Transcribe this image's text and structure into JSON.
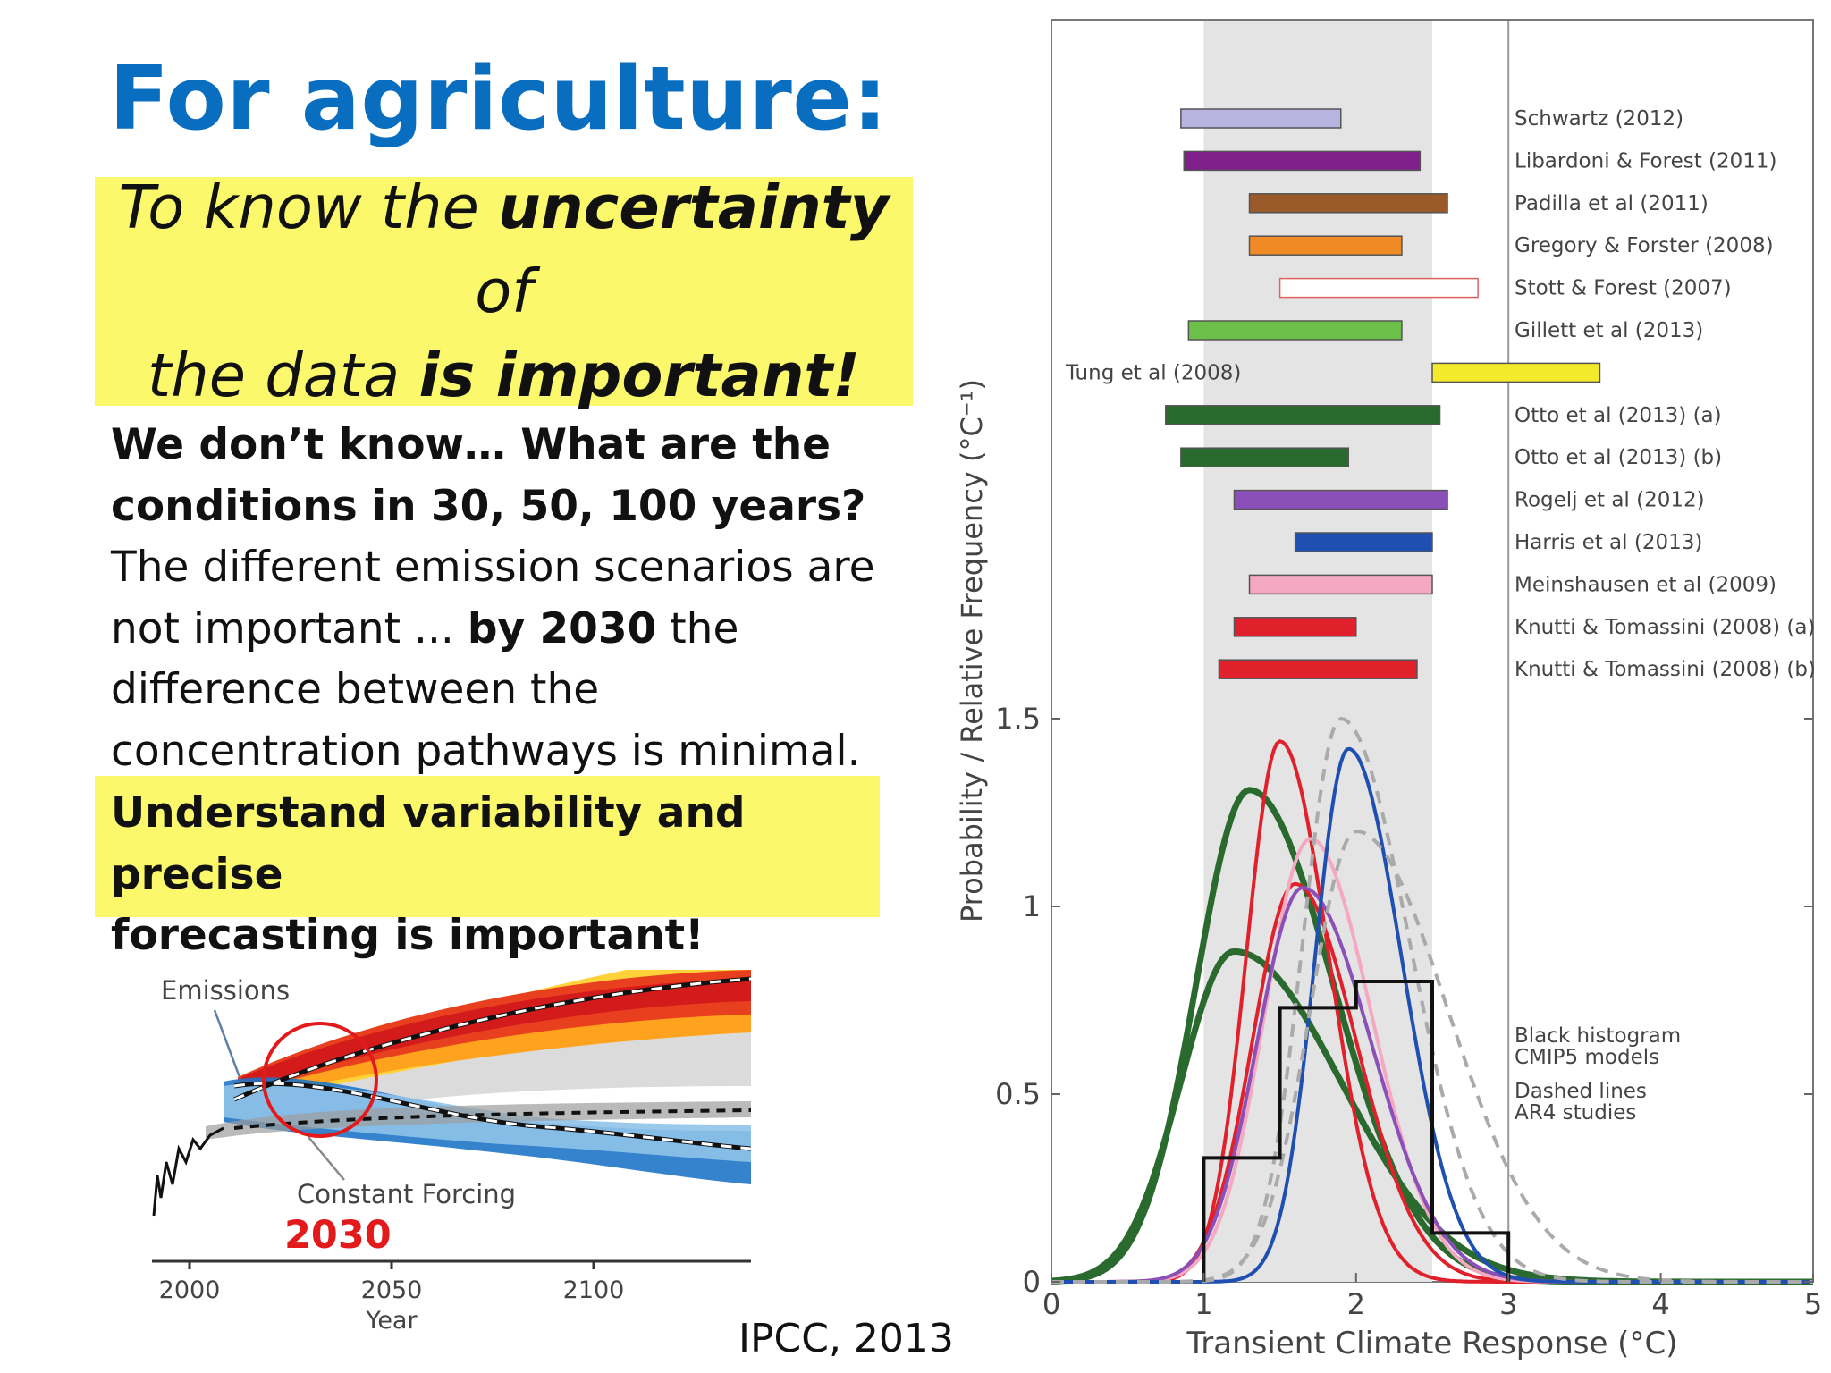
{
  "slide": {
    "title": "For agriculture:",
    "callout": {
      "line1_pre": "To know the ",
      "line1_bold": "uncertainty",
      "line1_post": " of",
      "line2_pre": "the data ",
      "line2_bold": "is important!"
    },
    "body": {
      "bold_line1": "We don’t know… What are the",
      "bold_line2": "conditions in 30, 50, 100 years?",
      "line3": "The different emission scenarios are",
      "line4_pre": "not important ... ",
      "line4_bold": "by 2030",
      "line4_post": " the",
      "line5": "difference between the",
      "line6": "concentration pathways is minimal."
    },
    "highlight": {
      "line1": "Understand variability and precise",
      "line2": "forecasting is important!"
    },
    "credit": "IPCC, 2013"
  },
  "scenario_chart": {
    "labels": {
      "emissions": "Emissions",
      "constant_forcing": "Constant Forcing",
      "year_marker": "2030",
      "xlabel": "Year"
    },
    "x_ticks": [
      "2000",
      "2050",
      "2100"
    ],
    "colors": {
      "marker_circle": "#e31a1c",
      "marker_text": "#e31a1c"
    }
  },
  "chart_data": {
    "type": "line",
    "xlabel": "Transient Climate Response (°C)",
    "ylabel": "Probability / Relative Frequency (°C⁻¹)",
    "xlim": [
      0,
      5
    ],
    "ylim": [
      0,
      1.5
    ],
    "x_ticks": [
      "0",
      "1",
      "2",
      "3",
      "4",
      "5"
    ],
    "y_ticks": [
      "0",
      "0.5",
      "1",
      "1.5"
    ],
    "likely_range": [
      1,
      2.5
    ],
    "reference_line_x": 3,
    "ranges": [
      {
        "name": "Schwartz (2012)",
        "low": 0.85,
        "high": 1.9,
        "color": "#b7b4e0"
      },
      {
        "name": "Libardoni & Forest (2011)",
        "low": 0.87,
        "high": 2.42,
        "color": "#7f1f8a"
      },
      {
        "name": "Padilla et al (2011)",
        "low": 1.3,
        "high": 2.6,
        "color": "#9a5a2a"
      },
      {
        "name": "Gregory & Forster (2008)",
        "low": 1.3,
        "high": 2.3,
        "color": "#f08a24"
      },
      {
        "name": "Stott & Forest (2007)",
        "low": 1.5,
        "high": 2.8,
        "color": "#ffffff",
        "outline": "#e06060"
      },
      {
        "name": "Gillett et al (2013)",
        "low": 0.9,
        "high": 2.3,
        "color": "#6cc04a"
      },
      {
        "name": "Tung et al (2008)",
        "low": 2.5,
        "high": 3.6,
        "color": "#f2ea2a"
      },
      {
        "name": "Otto et al (2013) (a)",
        "low": 0.75,
        "high": 2.55,
        "color": "#2a6a2e"
      },
      {
        "name": "Otto et al (2013) (b)",
        "low": 0.85,
        "high": 1.95,
        "color": "#2a6a2e"
      },
      {
        "name": "Rogelj et al (2012)",
        "low": 1.2,
        "high": 2.6,
        "color": "#8a4fb8"
      },
      {
        "name": "Harris et al (2013)",
        "low": 1.6,
        "high": 2.5,
        "color": "#1f4fb0"
      },
      {
        "name": "Meinshausen et al (2009)",
        "low": 1.3,
        "high": 2.5,
        "color": "#f4a8c2"
      },
      {
        "name": "Knutti & Tomassini (2008) (a)",
        "low": 1.2,
        "high": 2.0,
        "color": "#e0202a"
      },
      {
        "name": "Knutti & Tomassini (2008) (b)",
        "low": 1.1,
        "high": 2.4,
        "color": "#e0202a"
      }
    ],
    "histogram": {
      "name": "Black histogram CMIP5 models",
      "edges": [
        1.0,
        1.5,
        2.0,
        2.5,
        3.0
      ],
      "values": [
        0.33,
        0.73,
        0.8,
        0.13
      ]
    },
    "annotations": {
      "histogram_note_line1": "Black histogram",
      "histogram_note_line2": "CMIP5 models",
      "dashed_note_line1": "Dashed lines",
      "dashed_note_line2": "AR4 studies"
    },
    "series": [
      {
        "mode": 1.3,
        "peak": 1.31,
        "wl": 0.35,
        "wr": 0.55,
        "color": "#2a6a2e",
        "width": 7
      },
      {
        "mode": 1.2,
        "peak": 0.88,
        "wl": 0.35,
        "wr": 0.7,
        "color": "#2a6a2e",
        "width": 7
      },
      {
        "mode": 1.5,
        "peak": 1.44,
        "wl": 0.22,
        "wr": 0.32,
        "color": "#e0202a",
        "width": 4
      },
      {
        "mode": 1.6,
        "peak": 1.06,
        "wl": 0.28,
        "wr": 0.4,
        "color": "#e0202a",
        "width": 4
      },
      {
        "mode": 1.7,
        "peak": 1.18,
        "wl": 0.3,
        "wr": 0.4,
        "color": "#f4a8c2",
        "width": 4
      },
      {
        "mode": 1.65,
        "peak": 1.05,
        "wl": 0.3,
        "wr": 0.45,
        "color": "#8a4fb8",
        "width": 4
      },
      {
        "mode": 1.95,
        "peak": 1.42,
        "wl": 0.22,
        "wr": 0.35,
        "color": "#1f4fb0",
        "width": 4
      },
      {
        "mode": 1.9,
        "peak": 1.5,
        "wl": 0.25,
        "wr": 0.45,
        "color": "#aaaaaa",
        "width": 4,
        "dashed": true
      },
      {
        "mode": 2.0,
        "peak": 1.2,
        "wl": 0.3,
        "wr": 0.6,
        "color": "#aaaaaa",
        "width": 4,
        "dashed": true
      }
    ]
  }
}
